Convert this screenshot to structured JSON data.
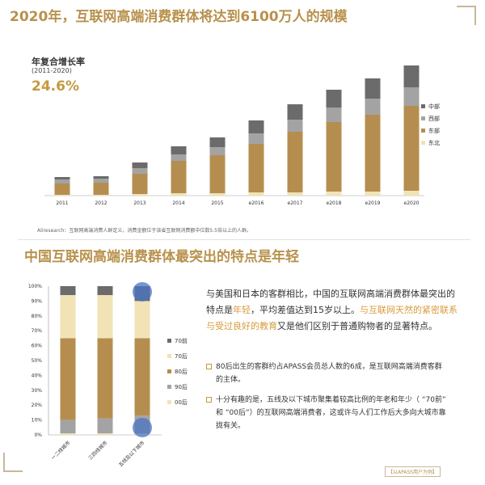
{
  "header": {
    "title": "2020年，互联网高端消费群体将达到6100万人的规模"
  },
  "cagr": {
    "label": "年复合增长率",
    "period": "(2011-2020)",
    "value": "24.6%"
  },
  "source_note": "Aliresearch：互联网高端消费人群定义，消费金额位于该省互联网消费额中位数5.5倍以上的人群。",
  "section2": {
    "title": "中国互联网高端消费群体最突出的特点是年轻",
    "para_a": "与美国和日本的客群相比，中国的互联网高端消费群体最突出的特点是",
    "para_hl1": "年轻",
    "para_b": "，平均差值达到15岁以上。",
    "para_hl2": "与互联网天然的紧密联系与受过良好的教育",
    "para_c": "又是他们区别于普通购物者的显著特点。",
    "bullet1": "80后出生的客群约占APASS会员总人数的6成，是互联网高端消费客群的主体。",
    "bullet2": "十分有趣的是，五线及以下城市聚集着较高比例的年老和年少（ “70前” 和 “00后”）的互联网高端消费者，这或许与人们工作后大多向大城市靠拢有关。",
    "footnote": "【以APASS用户为例】"
  },
  "colors": {
    "central": "#6b6b6b",
    "west": "#a3a3a3",
    "east": "#b58e4f",
    "northeast": "#f1e3b6",
    "s70before": "#6b6b6b",
    "s70s": "#f1e3b6",
    "s80s": "#b58e4f",
    "s90s": "#a3a3a3",
    "s00s": "#f1e3b6",
    "highlight": "#4a74c4"
  },
  "chart_data": [
    {
      "type": "bar",
      "stacked": true,
      "title": "",
      "xlabel": "",
      "ylabel": "",
      "categories": [
        "2011",
        "2012",
        "2013",
        "2014",
        "2015",
        "e2016",
        "e2017",
        "e2018",
        "e2019",
        "e2020"
      ],
      "series": [
        {
          "name": "东北",
          "values": [
            1,
            1,
            2,
            3,
            3,
            4,
            4,
            5,
            5,
            6
          ]
        },
        {
          "name": "东部",
          "values": [
            14,
            15,
            25,
            40,
            47,
            60,
            75,
            86,
            95,
            105
          ]
        },
        {
          "name": "西部",
          "values": [
            5,
            5,
            7,
            8,
            10,
            13,
            15,
            18,
            20,
            23
          ]
        },
        {
          "name": "中部",
          "values": [
            3,
            3,
            7,
            10,
            12,
            16,
            19,
            22,
            25,
            27
          ]
        }
      ],
      "legend_position": "right",
      "grid": false,
      "ylim": [
        0,
        165
      ]
    },
    {
      "type": "bar",
      "stacked": true,
      "title": "",
      "xlabel": "",
      "ylabel": "",
      "categories": [
        "一二线城市",
        "三四线城市",
        "五线及以下城市"
      ],
      "yticks": [
        "0%",
        "10%",
        "20%",
        "30%",
        "40%",
        "50%",
        "60%",
        "70%",
        "80%",
        "90%",
        "100%"
      ],
      "ylim": [
        0,
        100
      ],
      "series": [
        {
          "name": "00后",
          "values": [
            1,
            1,
            1
          ]
        },
        {
          "name": "90后",
          "values": [
            9,
            10,
            12
          ]
        },
        {
          "name": "80后",
          "values": [
            55,
            54,
            52
          ]
        },
        {
          "name": "70后",
          "values": [
            29,
            29,
            25
          ]
        },
        {
          "name": "70前",
          "values": [
            6,
            6,
            10
          ]
        }
      ],
      "legend_position": "right",
      "grid": false
    }
  ]
}
